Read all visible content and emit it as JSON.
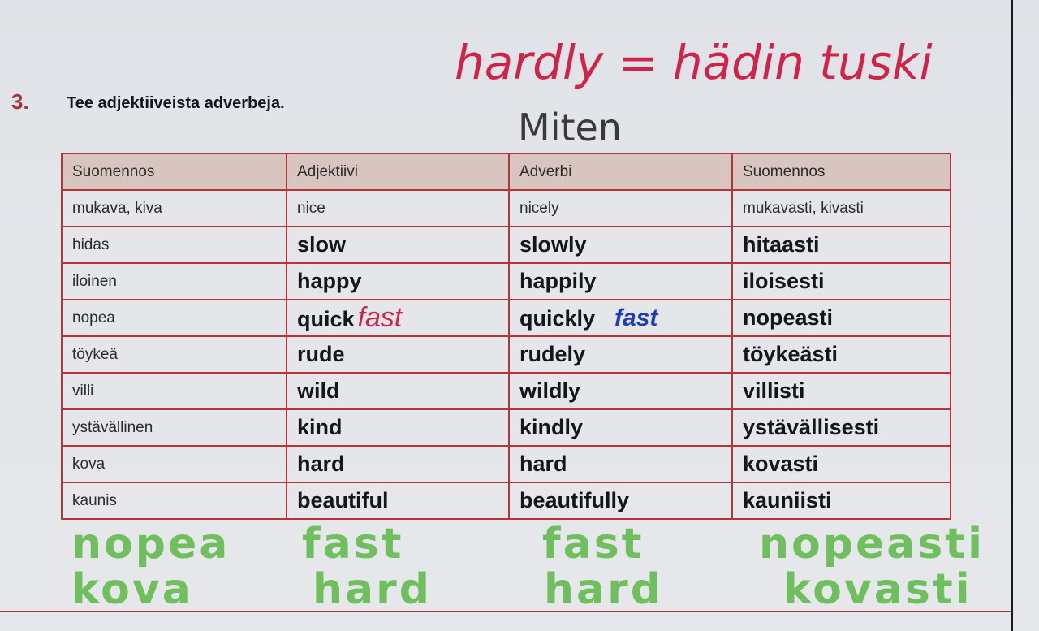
{
  "exercise": {
    "number": "3.",
    "instruction": "Tee adjektiiveista adverbeja."
  },
  "handwriting": {
    "red_note": "hardly = hädin tuski",
    "black_note": "Miten",
    "green_rows": [
      [
        "nopea",
        "fast",
        "fast",
        "nopeasti"
      ],
      [
        "kova",
        "hard",
        "hard",
        "kovasti"
      ]
    ]
  },
  "table": {
    "headers": [
      "Suomennos",
      "Adjektiivi",
      "Adverbi",
      "Suomennos"
    ],
    "example": [
      "mukava, kiva",
      "nice",
      "nicely",
      "mukavasti, kivasti"
    ],
    "rows": [
      {
        "fi": "hidas",
        "adj": "slow",
        "adv": "slowly",
        "fi2": "hitaasti"
      },
      {
        "fi": "iloinen",
        "adj": "happy",
        "adv": "happily",
        "fi2": "iloisesti"
      },
      {
        "fi": "nopea",
        "adj": "quick",
        "adj_note": "fast",
        "adv": "quickly",
        "adv_note": "fast",
        "fi2": "nopeasti"
      },
      {
        "fi": "töykeä",
        "adj": "rude",
        "adv": "rudely",
        "fi2": "töykeästi"
      },
      {
        "fi": "villi",
        "adj": "wild",
        "adv": "wildly",
        "fi2": "villisti"
      },
      {
        "fi": "ystävällinen",
        "adj": "kind",
        "adv": "kindly",
        "fi2": "ystävällisesti"
      },
      {
        "fi": "kova",
        "adj": "hard",
        "adv": "hard",
        "fi2": "kovasti"
      },
      {
        "fi": "kaunis",
        "adj": "beautiful",
        "adv": "beautifully",
        "fi2": "kauniisti"
      }
    ]
  }
}
